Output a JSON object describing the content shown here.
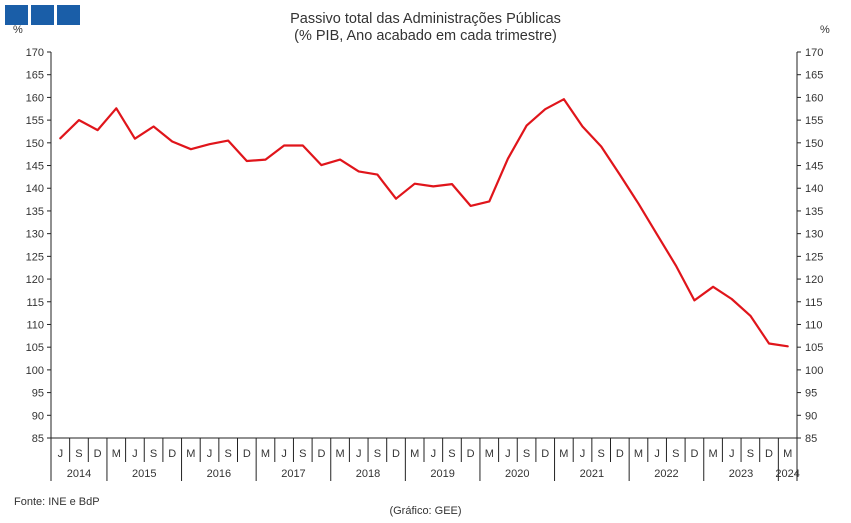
{
  "logo": {
    "color": "#1a5ea8",
    "squares": 3
  },
  "chart_data": {
    "type": "line",
    "title": "Passivo total das Administrações Públicas",
    "subtitle": "(% PIB, Ano acabado em cada trimestre)",
    "ylabel_left": "%",
    "ylabel_right": "%",
    "ylim": [
      85,
      170
    ],
    "yticks": [
      85,
      90,
      95,
      100,
      105,
      110,
      115,
      120,
      125,
      130,
      135,
      140,
      145,
      150,
      155,
      160,
      165,
      170
    ],
    "grid": false,
    "quarter_labels": [
      "J",
      "S",
      "D",
      "M",
      "J",
      "S",
      "D",
      "M",
      "J",
      "S",
      "D",
      "M",
      "J",
      "S",
      "D",
      "M",
      "J",
      "S",
      "D",
      "M",
      "J",
      "S",
      "D",
      "M",
      "J",
      "S",
      "D",
      "M",
      "J",
      "S",
      "D",
      "M",
      "J",
      "S",
      "D",
      "M",
      "J",
      "S",
      "D",
      "M"
    ],
    "years": [
      {
        "label": "2014",
        "count": 3
      },
      {
        "label": "2015",
        "count": 4
      },
      {
        "label": "2016",
        "count": 4
      },
      {
        "label": "2017",
        "count": 4
      },
      {
        "label": "2018",
        "count": 4
      },
      {
        "label": "2019",
        "count": 4
      },
      {
        "label": "2020",
        "count": 4
      },
      {
        "label": "2021",
        "count": 4
      },
      {
        "label": "2022",
        "count": 4
      },
      {
        "label": "2023",
        "count": 4
      },
      {
        "label": "2024",
        "count": 1
      }
    ],
    "series": [
      {
        "color": "#e0151b",
        "values": [
          151.0,
          155.0,
          152.8,
          157.6,
          150.9,
          153.6,
          150.3,
          148.6,
          149.7,
          150.5,
          146.0,
          146.3,
          149.4,
          149.4,
          145.1,
          146.3,
          143.7,
          143.0,
          137.7,
          141.0,
          140.4,
          140.9,
          136.1,
          137.1,
          146.5,
          153.8,
          157.4,
          159.6,
          153.6,
          149.2,
          143.0,
          136.6,
          129.8,
          123.0,
          115.3,
          118.3,
          115.6,
          111.9,
          105.8,
          105.2
        ]
      }
    ]
  },
  "footer": {
    "source": "Fonte: INE e BdP",
    "credit": "(Gráfico: GEE)"
  }
}
